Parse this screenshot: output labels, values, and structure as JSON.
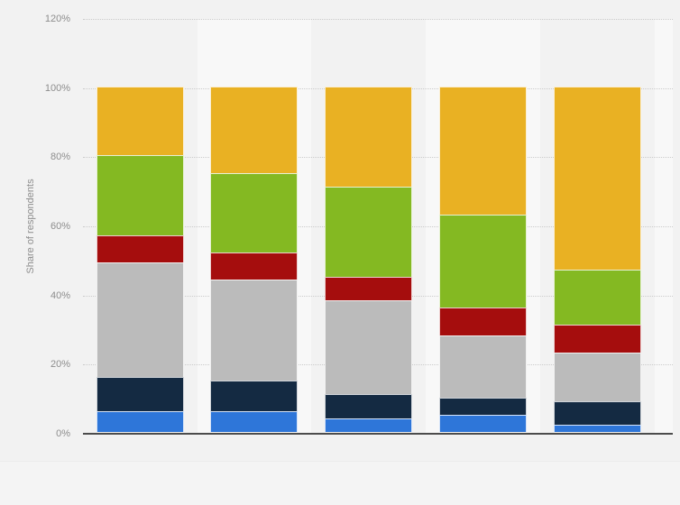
{
  "chart_data": {
    "type": "bar",
    "variant": "100-percent-stacked-columns",
    "title": "",
    "xlabel": "",
    "ylabel": "Share of respondents",
    "categories": [
      "",
      "",
      "",
      "",
      ""
    ],
    "series": [
      {
        "name": "blue",
        "color": "#2e76d9",
        "values": [
          6,
          6,
          4,
          5,
          2
        ]
      },
      {
        "name": "dark-navy",
        "color": "#142a42",
        "values": [
          10,
          9,
          7,
          5,
          7
        ]
      },
      {
        "name": "gray",
        "color": "#bbbbbb",
        "values": [
          33,
          29,
          27,
          18,
          14
        ]
      },
      {
        "name": "dark-red",
        "color": "#a50d0d",
        "values": [
          8,
          8,
          7,
          8,
          8
        ]
      },
      {
        "name": "green",
        "color": "#84b922",
        "values": [
          23,
          23,
          26,
          27,
          16
        ]
      },
      {
        "name": "yellow",
        "color": "#e9b123",
        "values": [
          20,
          25,
          29,
          37,
          53
        ]
      }
    ],
    "stack_order": "bottom-to-top",
    "yticks": [
      "0%",
      "20%",
      "40%",
      "60%",
      "80%",
      "100%",
      "120%"
    ],
    "ylim": [
      0,
      120
    ],
    "grid": "dotted-horizontal",
    "legend": "none",
    "unit": "%"
  },
  "style": {
    "page_background": "#f2f2f2",
    "band_light": "#f8f8f8",
    "grid_color": "#cbcbcb",
    "axis_line_color": "#4c4c4c",
    "tick_label_color": "#8d8d8d",
    "segment_border_color": "rgba(255,255,255,0.8)"
  }
}
